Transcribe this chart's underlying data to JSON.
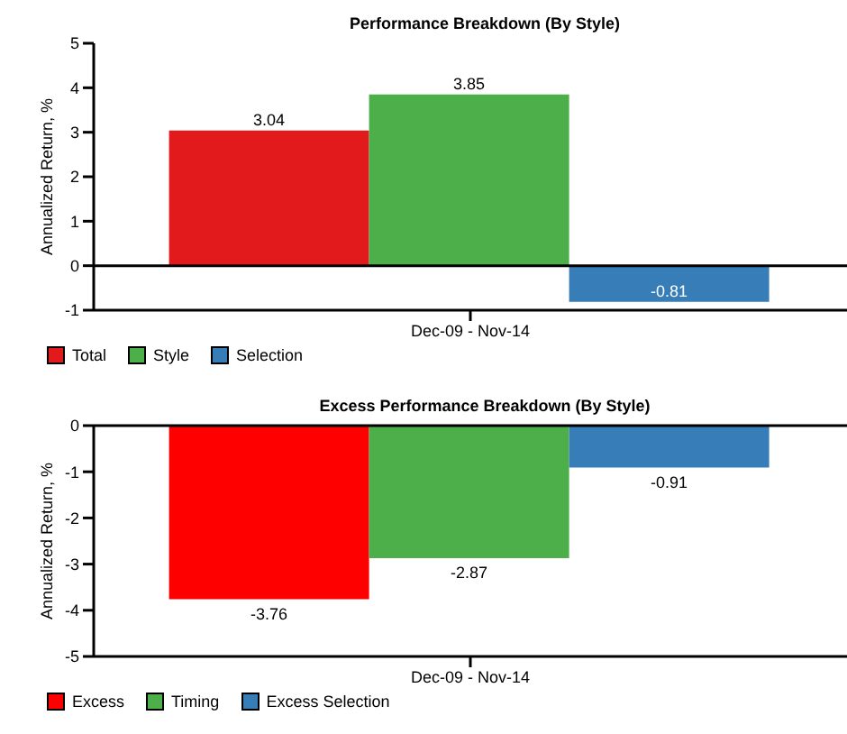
{
  "chart_data": [
    {
      "type": "bar",
      "title": "Performance Breakdown (By Style)",
      "ylabel": "Annualized Return, %",
      "categories": [
        "Dec-09 - Nov-14"
      ],
      "series": [
        {
          "name": "Total",
          "color": "#e31a1c",
          "values": [
            3.04
          ]
        },
        {
          "name": "Style",
          "color": "#4daf4a",
          "values": [
            3.85
          ]
        },
        {
          "name": "Selection",
          "color": "#377eb8",
          "values": [
            -0.81
          ]
        }
      ],
      "ylim": [
        -1,
        5
      ],
      "yticks": [
        -1,
        0,
        1,
        2,
        3,
        4,
        5
      ],
      "ref_lines": [
        {
          "axis": "y",
          "value": 0
        }
      ],
      "data_labels": true,
      "grid": false,
      "legend": "bottom left"
    },
    {
      "type": "bar",
      "title": "Excess Performance Breakdown (By Style)",
      "ylabel": "Annualized Return, %",
      "categories": [
        "Dec-09 - Nov-14"
      ],
      "series": [
        {
          "name": "Excess",
          "color": "#ff0000",
          "values": [
            -3.76
          ]
        },
        {
          "name": "Timing",
          "color": "#4daf4a",
          "values": [
            -2.87
          ]
        },
        {
          "name": "Excess Selection",
          "color": "#377eb8",
          "values": [
            -0.91
          ]
        }
      ],
      "ylim": [
        -5,
        0
      ],
      "yticks": [
        -5,
        -4,
        -3,
        -2,
        -1,
        0
      ],
      "ref_lines": [
        {
          "axis": "y",
          "value": 0
        }
      ],
      "data_labels": true,
      "grid": false,
      "legend": "bottom left"
    }
  ]
}
